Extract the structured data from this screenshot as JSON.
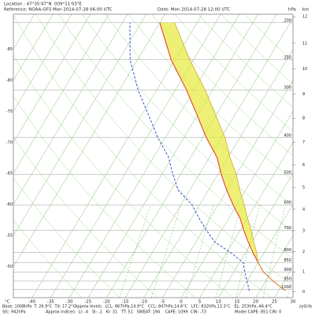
{
  "header": {
    "location": "Location : 47°35'47\"N  009°11'03\"E",
    "reference": "Reference: NOAA-GFS Mon 2014-07-28 06:00 UTC",
    "date": "Date: Mon 2014-07-28 12:00 UTC"
  },
  "chart_data": {
    "type": "skewt",
    "xlim": [
      -45,
      30
    ],
    "xticks": [
      -40,
      -35,
      -30,
      -25,
      -20,
      -15,
      -10,
      -5,
      0,
      5,
      10,
      15,
      20,
      25,
      30
    ],
    "x_unit": "°C",
    "isotherm_labels": [
      -85,
      -80,
      -75,
      -70,
      -65,
      -60,
      -55,
      -50
    ],
    "ylim": [
      1050,
      190
    ],
    "yscale": "log",
    "yticks": [
      200,
      250,
      300,
      400,
      500,
      600,
      700,
      800,
      850,
      900,
      950,
      1000
    ],
    "y_unit": "hPa",
    "km_unit": "km",
    "km_ticks": [
      0,
      1,
      2,
      3,
      4,
      5,
      6,
      7,
      8,
      9,
      10,
      11,
      12
    ],
    "dry_adiabats": [
      -30,
      -20,
      -10,
      0,
      10,
      20,
      30,
      40,
      50,
      60,
      70,
      80,
      90,
      100,
      110,
      120
    ],
    "mixing_ratios": [
      1,
      2,
      4,
      7,
      10,
      16,
      24
    ],
    "pressure": [
      1008,
      950,
      900,
      850,
      800,
      750,
      700,
      650,
      600,
      550,
      500,
      450,
      400,
      350,
      300,
      250,
      200
    ],
    "series": [
      {
        "color": "#e8302a",
        "dash": false,
        "values": [
          26.9,
          22,
          18,
          15,
          12,
          9,
          6,
          3,
          -1,
          -5,
          -9,
          -13,
          -19,
          -25,
          -32,
          -41,
          -50
        ]
      },
      {
        "color": "#3a4fd0",
        "dash": true,
        "values": [
          17.2,
          15,
          13,
          11,
          6,
          0,
          -4,
          -8,
          -12,
          -18,
          -22,
          -26,
          -32,
          -38,
          -45,
          -52,
          -58
        ]
      },
      {
        "color": "#c8a020",
        "dash": false,
        "values": [
          26.9,
          22,
          18,
          15,
          13,
          10.5,
          8,
          5,
          2,
          -1.5,
          -5,
          -9.5,
          -14,
          -20,
          -27,
          -36,
          -46
        ]
      }
    ],
    "cape_color": "#e6ea3a",
    "cin_color": "#e07070"
  },
  "footer": {
    "base": "Base: 1008hPa  T: 26.9°C  Td: 17.2°C",
    "levels": "Approx levels:  LCL: 867hPa,14.9°C   CCL: 847hPa,14.6°C   LFC: 832hPa,13.3°C   EL: 253hPa,-46.4°C",
    "sfc": "Sfc: 942hPa",
    "indices": "Approx indices:  LI: -4   SI: -1   KI: 31   TT: 51   SWEAT: 194    CAPE: 1099  CIN: -73",
    "model": "Model CAPE: 851 CIN: 0",
    "brand": "zyGrib"
  }
}
